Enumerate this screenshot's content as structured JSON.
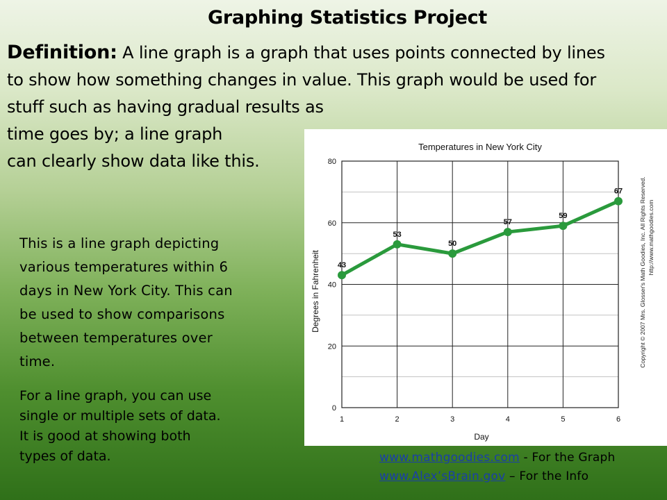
{
  "slide": {
    "title": "Graphing Statistics Project",
    "definition_label": "Definition:",
    "definition_lines": [
      "A line graph is a graph that uses points connected by lines",
      "to show how something changes in value. This graph would be used for",
      "stuff such as having gradual results as",
      "time goes by; a line graph",
      "can clearly show data like this."
    ],
    "description_lines": [
      "This is a line graph depicting",
      "various temperatures within 6",
      "days in New York City. This can",
      "be used to show comparisons",
      "between temperatures over",
      "time."
    ],
    "note_lines": [
      "For a line graph, you can use",
      "single or multiple sets of data.",
      "It is good at showing both",
      "types of data."
    ],
    "links": [
      {
        "text": "www.mathgoodies.com",
        "suffix": " - For the Graph"
      },
      {
        "text": "www.Alex’sBrain.gov",
        "suffix": " – For the Info"
      }
    ]
  },
  "chart_data": {
    "type": "line",
    "title": "Temperatures in New York City",
    "xlabel": "Day",
    "ylabel": "Degrees in Fahrenheit",
    "x": [
      1,
      2,
      3,
      4,
      5,
      6
    ],
    "values": [
      43,
      53,
      50,
      57,
      59,
      67
    ],
    "data_labels": [
      "43",
      "53",
      "50",
      "57",
      "59",
      "67"
    ],
    "x_ticks": [
      "1",
      "2",
      "3",
      "4",
      "5",
      "6"
    ],
    "y_ticks": [
      "0",
      "20",
      "40",
      "60",
      "80"
    ],
    "ylim": [
      0,
      80
    ],
    "grid": true,
    "line_color": "#2a9a3c",
    "copyright_lines": [
      "Copyright © 2007 Mrs. Glosser's Math Goodies, Inc. All Rights Reserved.",
      "http://www.mathgoodies.com"
    ]
  }
}
